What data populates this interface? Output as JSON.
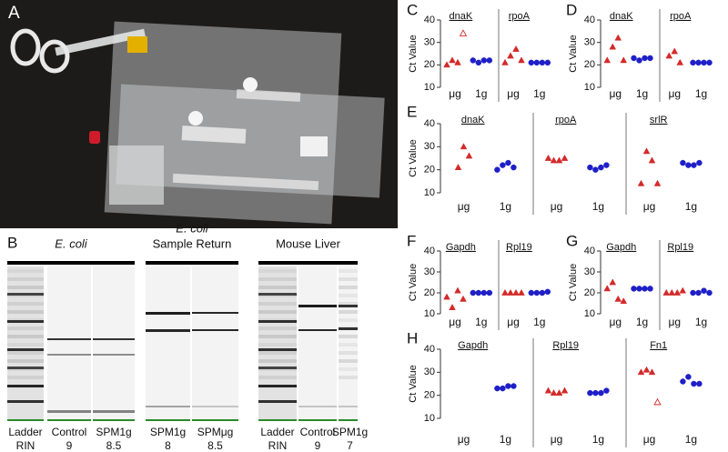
{
  "panel_a": {
    "label": "A"
  },
  "panel_b": {
    "label": "B",
    "groups": [
      {
        "title": "E. coli"
      },
      {
        "title": "E. coli",
        "subtitle": "Sample Return"
      },
      {
        "title": "Mouse Liver"
      }
    ],
    "lanes": [
      {
        "name": "Ladder",
        "rin": "RIN"
      },
      {
        "name": "Control",
        "rin": 9
      },
      {
        "name": "SPM1g",
        "rin": 8.5
      },
      {
        "name": "SPM1g",
        "rin": 8
      },
      {
        "name": "SPMμg",
        "rin": 8.5
      },
      {
        "name": "Ladder",
        "rin": "RIN"
      },
      {
        "name": "Control",
        "rin": 9
      },
      {
        "name": "SPM1g",
        "rin": 7
      }
    ]
  },
  "chart_data": [
    {
      "type": "scatter",
      "label": "C",
      "ylabel": "Ct Value",
      "ylim": [
        10,
        40
      ],
      "yticks": [
        10,
        20,
        30,
        40
      ],
      "groups": [
        {
          "title": "dnaK",
          "series": [
            {
              "name": "μg",
              "marker": "triangle",
              "color": "#d42a2a",
              "values": [
                20,
                22,
                21
              ],
              "hollow_values": [
                34
              ]
            },
            {
              "name": "1g",
              "marker": "circle",
              "color": "#1f1fc8",
              "values": [
                22,
                21,
                22,
                22
              ]
            }
          ]
        },
        {
          "title": "rpoA",
          "series": [
            {
              "name": "μg",
              "marker": "triangle",
              "color": "#d42a2a",
              "values": [
                21,
                24,
                27,
                22
              ]
            },
            {
              "name": "1g",
              "marker": "circle",
              "color": "#1f1fc8",
              "values": [
                21,
                21,
                21,
                21
              ]
            }
          ]
        }
      ]
    },
    {
      "type": "scatter",
      "label": "D",
      "ylabel": "Ct Value",
      "ylim": [
        10,
        40
      ],
      "yticks": [
        10,
        20,
        30,
        40
      ],
      "groups": [
        {
          "title": "dnaK",
          "series": [
            {
              "name": "μg",
              "marker": "triangle",
              "color": "#d42a2a",
              "values": [
                22,
                28,
                32,
                22
              ]
            },
            {
              "name": "1g",
              "marker": "circle",
              "color": "#1f1fc8",
              "values": [
                23,
                22,
                23,
                23
              ]
            }
          ]
        },
        {
          "title": "rpoA",
          "series": [
            {
              "name": "μg",
              "marker": "triangle",
              "color": "#d42a2a",
              "values": [
                24,
                26,
                21
              ]
            },
            {
              "name": "1g",
              "marker": "circle",
              "color": "#1f1fc8",
              "values": [
                21,
                21,
                21,
                21
              ]
            }
          ]
        }
      ]
    },
    {
      "type": "scatter",
      "label": "E",
      "ylabel": "Ct Value",
      "ylim": [
        10,
        40
      ],
      "yticks": [
        10,
        20,
        30,
        40
      ],
      "groups": [
        {
          "title": "dnaK",
          "series": [
            {
              "name": "μg",
              "marker": "triangle",
              "color": "#d42a2a",
              "values": [
                21,
                30,
                26
              ]
            },
            {
              "name": "1g",
              "marker": "circle",
              "color": "#1f1fc8",
              "values": [
                20,
                22,
                23,
                21
              ]
            }
          ]
        },
        {
          "title": "rpoA",
          "series": [
            {
              "name": "μg",
              "marker": "triangle",
              "color": "#d42a2a",
              "values": [
                25,
                24,
                24,
                25
              ]
            },
            {
              "name": "1g",
              "marker": "circle",
              "color": "#1f1fc8",
              "values": [
                21,
                20,
                21,
                22
              ]
            }
          ]
        },
        {
          "title": "srlR",
          "series": [
            {
              "name": "μg",
              "marker": "triangle",
              "color": "#d42a2a",
              "values": [
                14,
                28,
                24,
                14
              ]
            },
            {
              "name": "1g",
              "marker": "circle",
              "color": "#1f1fc8",
              "values": [
                23,
                22,
                22,
                23
              ]
            }
          ]
        }
      ]
    },
    {
      "type": "scatter",
      "label": "F",
      "ylabel": "Ct Value",
      "ylim": [
        10,
        40
      ],
      "yticks": [
        10,
        20,
        30,
        40
      ],
      "groups": [
        {
          "title": "Gapdh",
          "series": [
            {
              "name": "μg",
              "marker": "triangle",
              "color": "#d42a2a",
              "values": [
                18,
                13,
                21,
                17
              ]
            },
            {
              "name": "1g",
              "marker": "circle",
              "color": "#1f1fc8",
              "values": [
                20,
                20,
                20,
                20
              ]
            }
          ]
        },
        {
          "title": "Rpl19",
          "series": [
            {
              "name": "μg",
              "marker": "triangle",
              "color": "#d42a2a",
              "values": [
                20,
                20,
                20,
                20
              ]
            },
            {
              "name": "1g",
              "marker": "circle",
              "color": "#1f1fc8",
              "values": [
                20,
                20,
                20,
                20.5
              ]
            }
          ]
        }
      ]
    },
    {
      "type": "scatter",
      "label": "G",
      "ylabel": "Ct Value",
      "ylim": [
        10,
        40
      ],
      "yticks": [
        10,
        20,
        30,
        40
      ],
      "groups": [
        {
          "title": "Gapdh",
          "series": [
            {
              "name": "μg",
              "marker": "triangle",
              "color": "#d42a2a",
              "values": [
                22,
                25,
                17,
                16
              ]
            },
            {
              "name": "1g",
              "marker": "circle",
              "color": "#1f1fc8",
              "values": [
                22,
                22,
                22,
                22
              ]
            }
          ]
        },
        {
          "title": "Rpl19",
          "series": [
            {
              "name": "μg",
              "marker": "triangle",
              "color": "#d42a2a",
              "values": [
                20,
                20,
                20,
                21
              ]
            },
            {
              "name": "1g",
              "marker": "circle",
              "color": "#1f1fc8",
              "values": [
                20,
                20,
                21,
                20
              ]
            }
          ]
        }
      ]
    },
    {
      "type": "scatter",
      "label": "H",
      "ylabel": "Ct Value",
      "ylim": [
        10,
        40
      ],
      "yticks": [
        10,
        20,
        30,
        40
      ],
      "groups": [
        {
          "title": "Gapdh",
          "series": [
            {
              "name": "μg",
              "marker": "triangle",
              "color": "#d42a2a",
              "values": []
            },
            {
              "name": "1g",
              "marker": "circle",
              "color": "#1f1fc8",
              "values": [
                23,
                23,
                24,
                24
              ]
            }
          ]
        },
        {
          "title": "Rpl19",
          "series": [
            {
              "name": "μg",
              "marker": "triangle",
              "color": "#d42a2a",
              "values": [
                22,
                21,
                21,
                22
              ]
            },
            {
              "name": "1g",
              "marker": "circle",
              "color": "#1f1fc8",
              "values": [
                21,
                21,
                21,
                22
              ]
            }
          ]
        },
        {
          "title": "Fn1",
          "series": [
            {
              "name": "μg",
              "marker": "triangle",
              "color": "#d42a2a",
              "values": [
                30,
                31,
                30
              ],
              "hollow_values": [
                17
              ]
            },
            {
              "name": "1g",
              "marker": "circle",
              "color": "#1f1fc8",
              "values": [
                26,
                28,
                25,
                25
              ]
            }
          ]
        }
      ]
    }
  ]
}
